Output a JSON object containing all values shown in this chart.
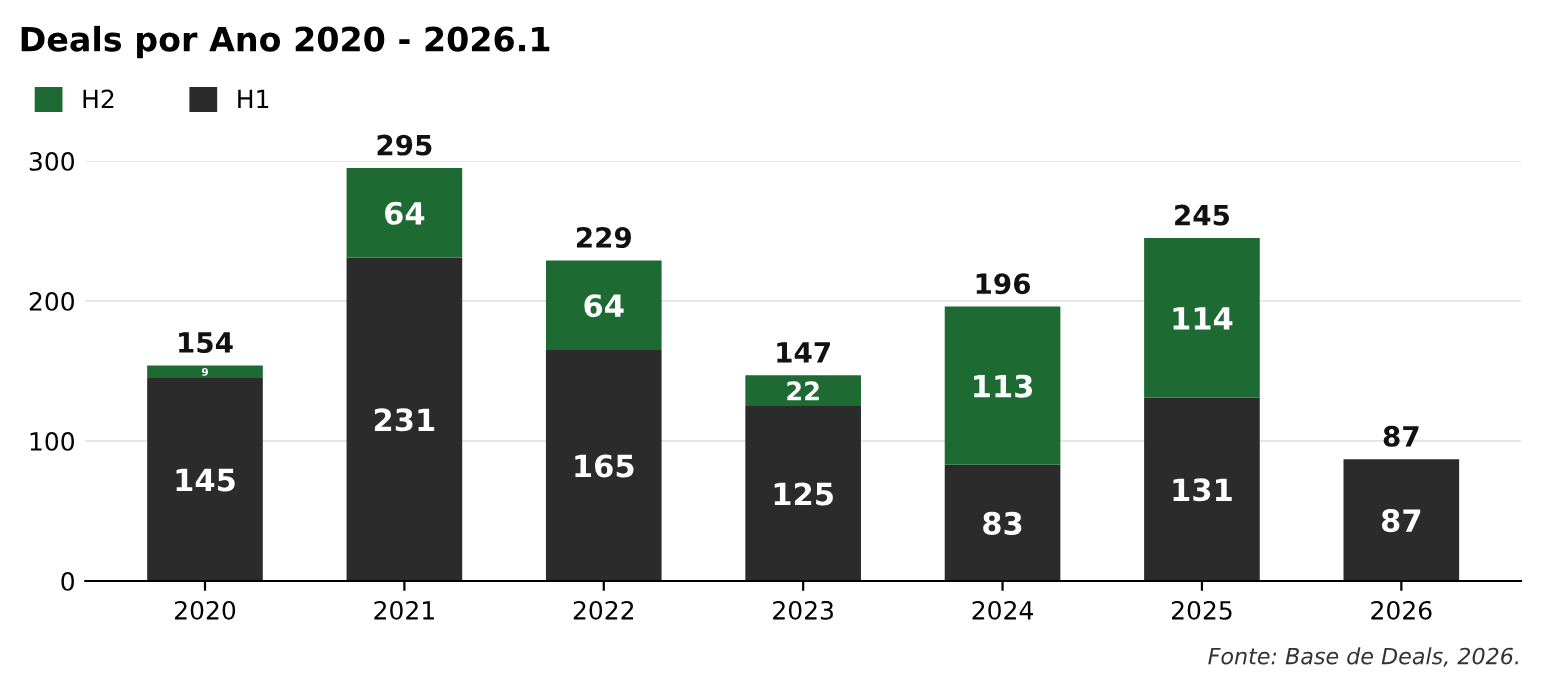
{
  "chart_data": {
    "type": "bar",
    "title": "Deals por Ano 2020 - 2026.1",
    "categories": [
      "2020",
      "2021",
      "2022",
      "2023",
      "2024",
      "2025",
      "2026"
    ],
    "series": [
      {
        "name": "H1",
        "color": "#2b2b2b",
        "values": [
          145,
          231,
          165,
          125,
          83,
          131,
          87
        ]
      },
      {
        "name": "H2",
        "color": "#1d6b33",
        "values": [
          9,
          64,
          64,
          22,
          113,
          114,
          null
        ]
      }
    ],
    "stacked": true,
    "data_labels": true,
    "totals": [
      "154",
      "295",
      "229",
      "147",
      "196",
      "245",
      "87"
    ],
    "ylim": [
      0,
      300
    ],
    "yticks": [
      0,
      100,
      200,
      300
    ],
    "grid": "y",
    "legend": "top left",
    "annotations": [
      "Fonte: Base de Deals, 2026."
    ]
  }
}
